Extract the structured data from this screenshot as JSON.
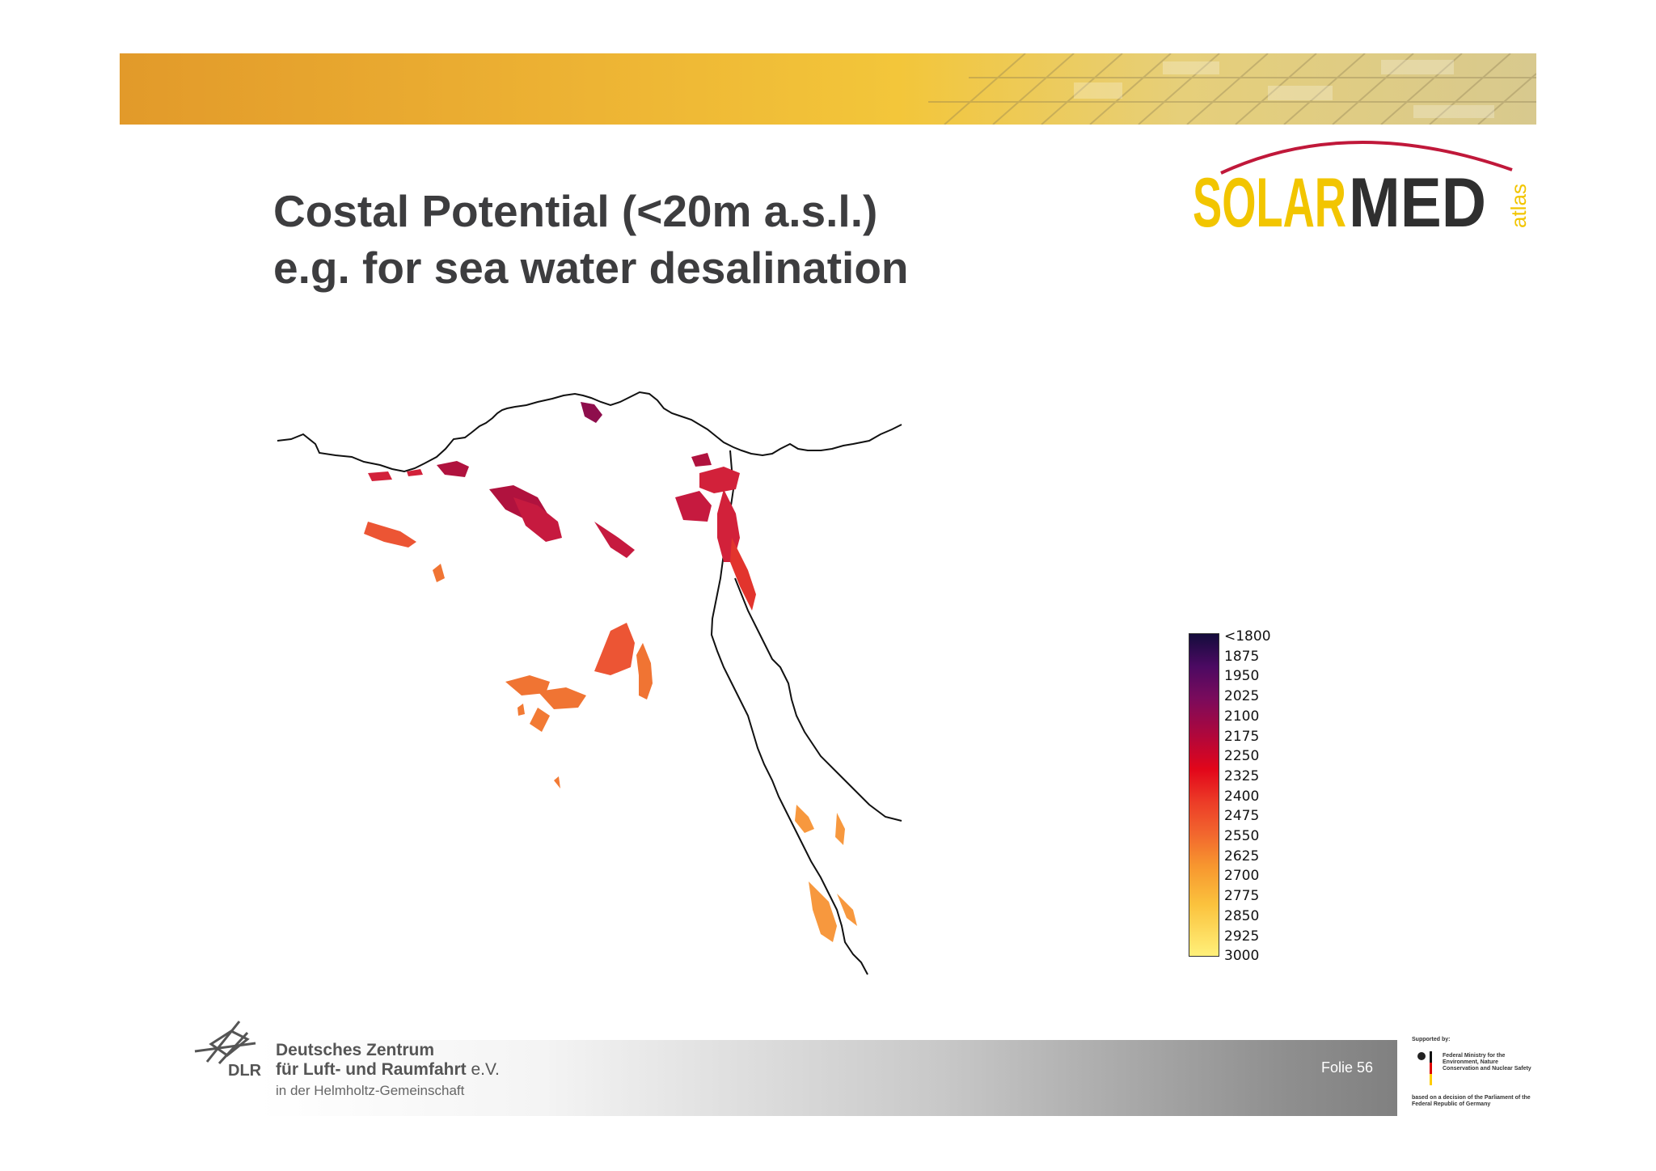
{
  "slide": {
    "title_line1": "Costal Potential (<20m a.s.l.)",
    "title_line2": "e.g. for sea water desalination",
    "page_label": "Folie 56"
  },
  "logo": {
    "word_part1": "SOLAR",
    "word_part2": "MED",
    "suffix": "atlas",
    "colors": {
      "solar": "#f2c500",
      "med": "#2f2f2f",
      "arc": "#c0183a"
    }
  },
  "legend": {
    "labels": [
      "<1800",
      "1875",
      "1950",
      "2025",
      "2100",
      "2175",
      "2250",
      "2325",
      "2400",
      "2475",
      "2550",
      "2625",
      "2700",
      "2775",
      "2850",
      "2925",
      "3000"
    ],
    "color_low": "#140c3c",
    "color_high": "#fff07a"
  },
  "institution": {
    "name_line1": "Deutsches Zentrum",
    "name_line2": "für Luft- und Raumfahrt",
    "name_suffix": "e.V.",
    "abbreviation": "DLR",
    "subtitle": "in der Helmholtz-Gemeinschaft"
  },
  "sponsor": {
    "header": "Supported by:",
    "ministry": "Federal Ministry for the Environment, Nature Conservation and Nuclear Safety",
    "footer": "based on a decision of the Parliament of the Federal Republic of Germany"
  }
}
